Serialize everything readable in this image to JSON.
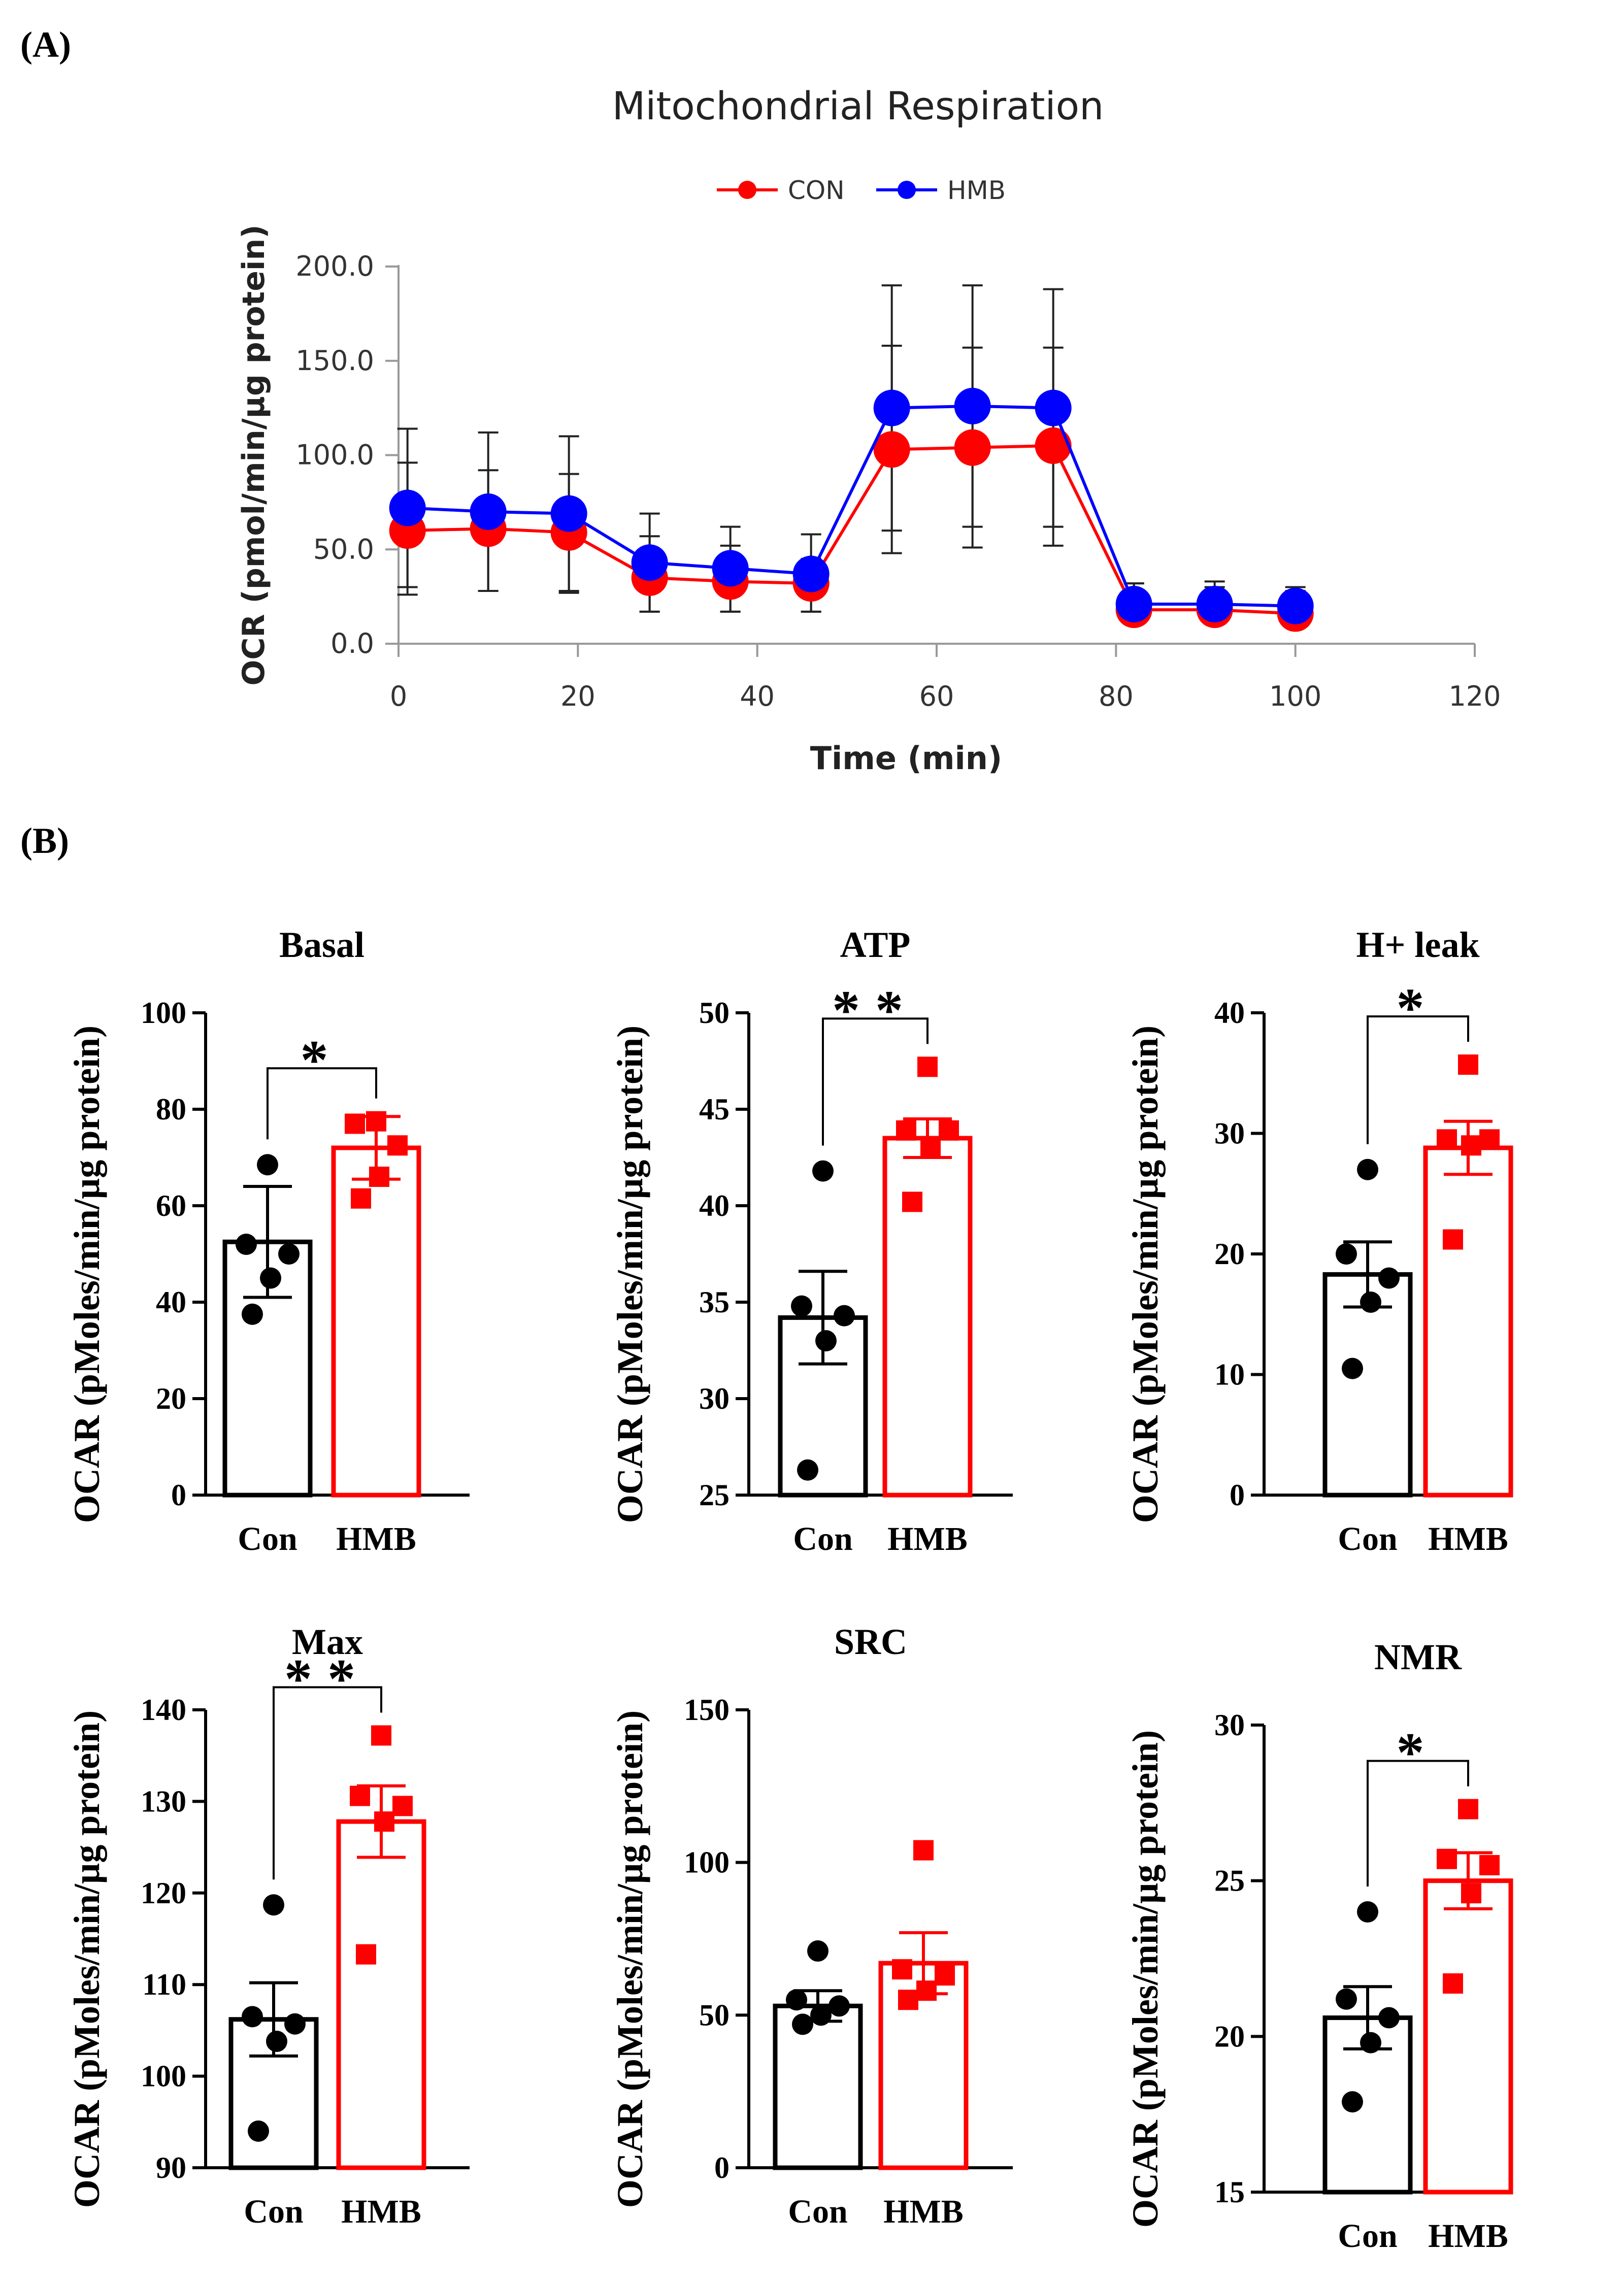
{
  "panel_a": {
    "label": "(A)",
    "chart_data": {
      "type": "line",
      "title": "Mitochondrial Respiration",
      "xlabel": "Time (min)",
      "ylabel": "OCR (pmol/min/µg protein)",
      "xlim": [
        0,
        120
      ],
      "ylim": [
        0,
        200
      ],
      "xticks": [
        0,
        20,
        40,
        60,
        80,
        100,
        120
      ],
      "xtick_labels": [
        "0",
        "20",
        "40",
        "60",
        "80",
        "100",
        "120"
      ],
      "yticks": [
        0,
        50,
        100,
        150,
        200
      ],
      "ytick_labels": [
        "0.0",
        "50.0",
        "100.0",
        "150.0",
        "200.0"
      ],
      "legend": [
        "CON",
        "HMB"
      ],
      "legend_position": "top-center",
      "x": [
        1,
        10,
        19,
        28,
        37,
        46,
        55,
        64,
        73,
        82,
        91,
        100
      ],
      "series": [
        {
          "name": "CON",
          "color": "#ff0000",
          "values": [
            60,
            61,
            59,
            35,
            33,
            32,
            103,
            104,
            105,
            18,
            18,
            16
          ],
          "err_upper": [
            96,
            92,
            90,
            57,
            52,
            45,
            158,
            157,
            157,
            32,
            30,
            28
          ],
          "err_lower": [
            26,
            28,
            27,
            17,
            17,
            17,
            48,
            51,
            52,
            11,
            11,
            12
          ]
        },
        {
          "name": "HMB",
          "color": "#0000ff",
          "values": [
            72,
            70,
            69,
            43,
            40,
            37,
            125,
            126,
            125,
            21,
            21,
            20
          ],
          "err_upper": [
            114,
            112,
            110,
            69,
            62,
            58,
            190,
            190,
            188,
            32,
            33,
            30
          ],
          "err_lower": [
            30,
            28,
            28,
            17,
            17,
            17,
            60,
            62,
            62,
            11,
            11,
            10
          ]
        }
      ]
    }
  },
  "panel_b": {
    "label": "(B)",
    "chart_data": [
      {
        "type": "bar",
        "title": "Basal",
        "ylabel": "OCAR (pMoles/min/µg protein)",
        "categories": [
          "Con",
          "HMB"
        ],
        "ylim": [
          0,
          100
        ],
        "yticks": [
          0,
          20,
          40,
          60,
          80,
          100
        ],
        "means": [
          52.5,
          72
        ],
        "sem": [
          11.5,
          6.5
        ],
        "points": [
          [
            68.5,
            52,
            50,
            45,
            37.5
          ],
          [
            77.5,
            77,
            72.5,
            66,
            61.5
          ]
        ],
        "significance": "*"
      },
      {
        "type": "bar",
        "title": "ATP",
        "ylabel": "OCAR (pMoles/min/µg protein)",
        "categories": [
          "Con",
          "HMB"
        ],
        "ylim": [
          25,
          50
        ],
        "yticks": [
          25,
          30,
          35,
          40,
          45,
          50
        ],
        "means": [
          34.2,
          43.5
        ],
        "sem": [
          2.4,
          1.0
        ],
        "points": [
          [
            41.8,
            34.8,
            34.3,
            33.0,
            26.3
          ],
          [
            47.2,
            43.9,
            43.9,
            43.0,
            40.2
          ]
        ],
        "significance": "**"
      },
      {
        "type": "bar",
        "title": "H+ leak",
        "ylabel": "OCAR (pMoles/min/µg protein)",
        "categories": [
          "Con",
          "HMB"
        ],
        "ylim": [
          0,
          40
        ],
        "yticks": [
          0,
          10,
          20,
          30,
          40
        ],
        "means": [
          18.3,
          28.8
        ],
        "sem": [
          2.7,
          2.2
        ],
        "points": [
          [
            27.0,
            20.0,
            18.0,
            16.0,
            10.5
          ],
          [
            35.7,
            29.5,
            29.5,
            29.0,
            21.2
          ]
        ],
        "significance": "*"
      },
      {
        "type": "bar",
        "title": "Max",
        "ylabel": "OCAR (pMoles/min/µg protein)",
        "categories": [
          "Con",
          "HMB"
        ],
        "ylim": [
          90,
          140
        ],
        "yticks": [
          90,
          100,
          110,
          120,
          130,
          140
        ],
        "means": [
          106.2,
          127.8
        ],
        "sem": [
          4.0,
          3.9
        ],
        "points": [
          [
            118.7,
            106.5,
            105.7,
            103.8,
            94.0
          ],
          [
            137.2,
            130.6,
            129.5,
            127.8,
            113.3
          ]
        ],
        "significance": "**"
      },
      {
        "type": "bar",
        "title": "SRC",
        "ylabel": "OCAR (pMoles/min/µg protein)",
        "categories": [
          "Con",
          "HMB"
        ],
        "ylim": [
          0,
          150
        ],
        "yticks": [
          0,
          50,
          100,
          150
        ],
        "means": [
          53,
          67
        ],
        "sem": [
          5,
          10
        ],
        "points": [
          [
            71,
            55,
            53,
            50,
            47
          ],
          [
            104,
            65,
            63,
            58,
            55
          ]
        ],
        "significance": ""
      },
      {
        "type": "bar",
        "title": "NMR",
        "ylabel": "OCAR (pMoles/min/µg protein)",
        "categories": [
          "Con",
          "HMB"
        ],
        "ylim": [
          15,
          30
        ],
        "yticks": [
          15,
          20,
          25,
          30
        ],
        "means": [
          20.6,
          25.0
        ],
        "sem": [
          1.0,
          0.9
        ],
        "points": [
          [
            24.0,
            21.2,
            20.6,
            19.8,
            17.9
          ],
          [
            27.3,
            25.7,
            25.5,
            24.6,
            21.7
          ]
        ],
        "significance": "*"
      }
    ]
  }
}
